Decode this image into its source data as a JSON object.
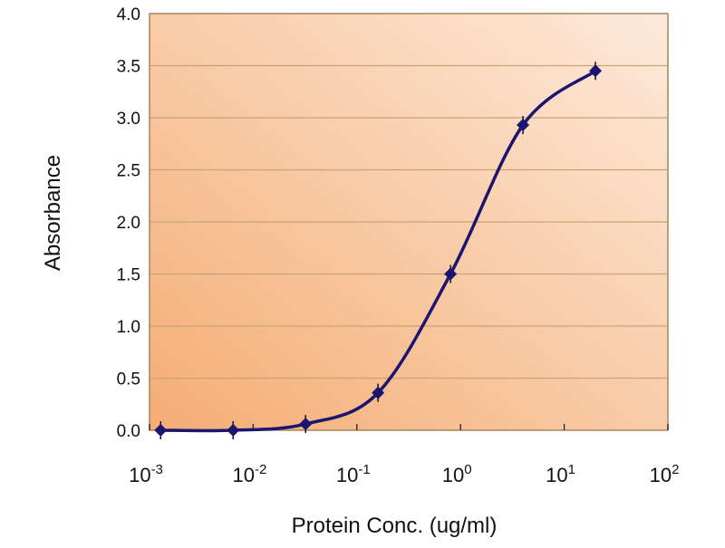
{
  "chart_data": {
    "type": "line",
    "title": "",
    "xlabel": "Protein Conc. (ug/ml)",
    "ylabel": "Absorbance",
    "xscale": "log",
    "xlim": [
      0.001,
      100
    ],
    "ylim": [
      0,
      4
    ],
    "x_ticks": [
      {
        "base": "10",
        "exp": "-3",
        "value": 0.001
      },
      {
        "base": "10",
        "exp": "-2",
        "value": 0.01
      },
      {
        "base": "10",
        "exp": "-1",
        "value": 0.1
      },
      {
        "base": "10",
        "exp": "0",
        "value": 1
      },
      {
        "base": "10",
        "exp": "1",
        "value": 10
      },
      {
        "base": "10",
        "exp": "2",
        "value": 100
      }
    ],
    "y_ticks": [
      "0.0",
      "0.5",
      "1.0",
      "1.5",
      "2.0",
      "2.5",
      "3.0",
      "3.5",
      "4.0"
    ],
    "grid": "horizontal",
    "series": [
      {
        "name": "Absorbance",
        "color": "#1c1470",
        "x": [
          0.00128,
          0.0064,
          0.032,
          0.16,
          0.8,
          4,
          20
        ],
        "y": [
          0.0,
          0.0,
          0.06,
          0.36,
          1.5,
          2.93,
          3.45
        ]
      }
    ],
    "colors": {
      "bg_light": "#fdeadb",
      "bg_dark": "#f4ad74",
      "grid": "#c9a27a",
      "frame": "#a5865f"
    }
  }
}
